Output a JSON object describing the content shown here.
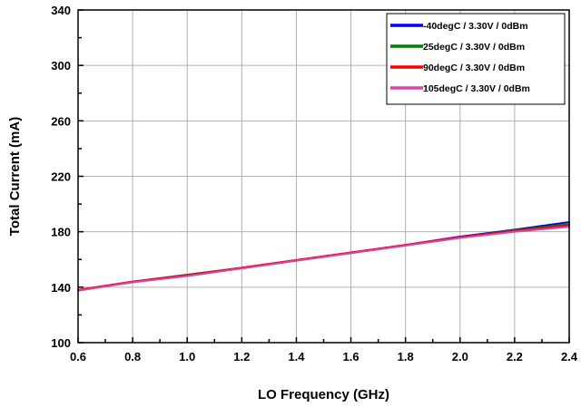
{
  "chart_data": {
    "type": "line",
    "xlabel": "LO Frequency (GHz)",
    "ylabel": "Total Current (mA)",
    "xlim": [
      0.6,
      2.4
    ],
    "ylim": [
      100,
      340
    ],
    "x_ticks": [
      0.6,
      0.8,
      1.0,
      1.2,
      1.4,
      1.6,
      1.8,
      2.0,
      2.2,
      2.4
    ],
    "x_tick_labels": [
      "0.6",
      "0.8",
      "1.0",
      "1.2",
      "1.4",
      "1.6",
      "1.8",
      "2.0",
      "2.2",
      "2.4"
    ],
    "y_ticks": [
      100,
      140,
      180,
      220,
      260,
      300,
      340
    ],
    "y_tick_labels": [
      "100",
      "140",
      "180",
      "220",
      "260",
      "300",
      "340"
    ],
    "grid": true,
    "legend_position": "top-right",
    "x": [
      0.6,
      0.8,
      1.0,
      1.2,
      1.4,
      1.6,
      1.8,
      2.0,
      2.2,
      2.4
    ],
    "series": [
      {
        "name": "-40degC /  3.30V /  0dBm",
        "color": "#0000ff",
        "values": [
          138,
          144,
          149,
          154,
          159.5,
          165,
          170.5,
          176.5,
          181.5,
          187
        ]
      },
      {
        "name": "25degC /  3.30V /  0dBm",
        "color": "#008000",
        "values": [
          138,
          144,
          149,
          154,
          159.5,
          165,
          170.5,
          176,
          181,
          185.5
        ]
      },
      {
        "name": "90degC /  3.30V /  0dBm",
        "color": "#ff0000",
        "values": [
          138,
          144,
          148.5,
          154,
          159.5,
          165,
          170.5,
          176,
          180.5,
          184.5
        ]
      },
      {
        "name": "105degC /  3.30V /  0dBm",
        "color": "#dd44aa",
        "values": [
          137.5,
          143.5,
          148,
          153.5,
          159,
          164.5,
          170,
          175.5,
          180,
          183.5
        ]
      }
    ]
  }
}
